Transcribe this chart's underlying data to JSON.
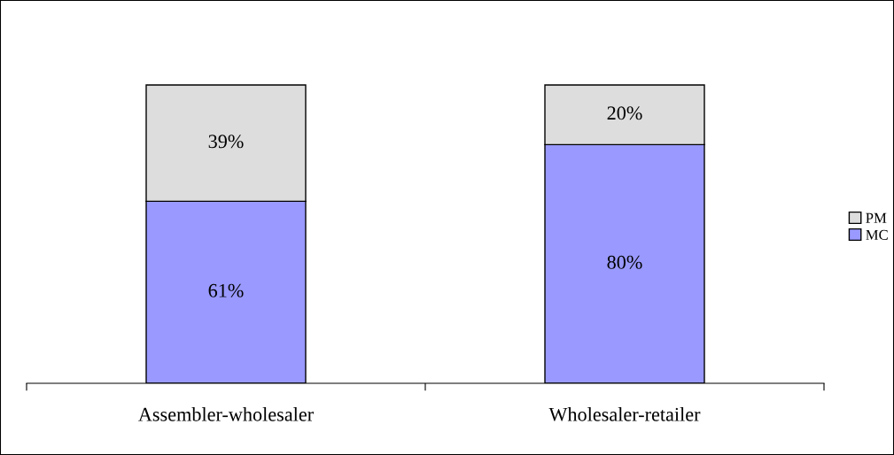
{
  "chart_data": {
    "type": "bar",
    "stacked": true,
    "categories": [
      "Assembler-wholesaler",
      "Wholesaler-retailer"
    ],
    "series": [
      {
        "name": "MC",
        "color": "#9999ff",
        "values": [
          61,
          80
        ],
        "value_labels": [
          "61%",
          "80%"
        ]
      },
      {
        "name": "PM",
        "color": "#dddddd",
        "values": [
          39,
          20
        ],
        "value_labels": [
          "39%",
          "20%"
        ]
      }
    ],
    "legend": "right",
    "grid": false
  }
}
